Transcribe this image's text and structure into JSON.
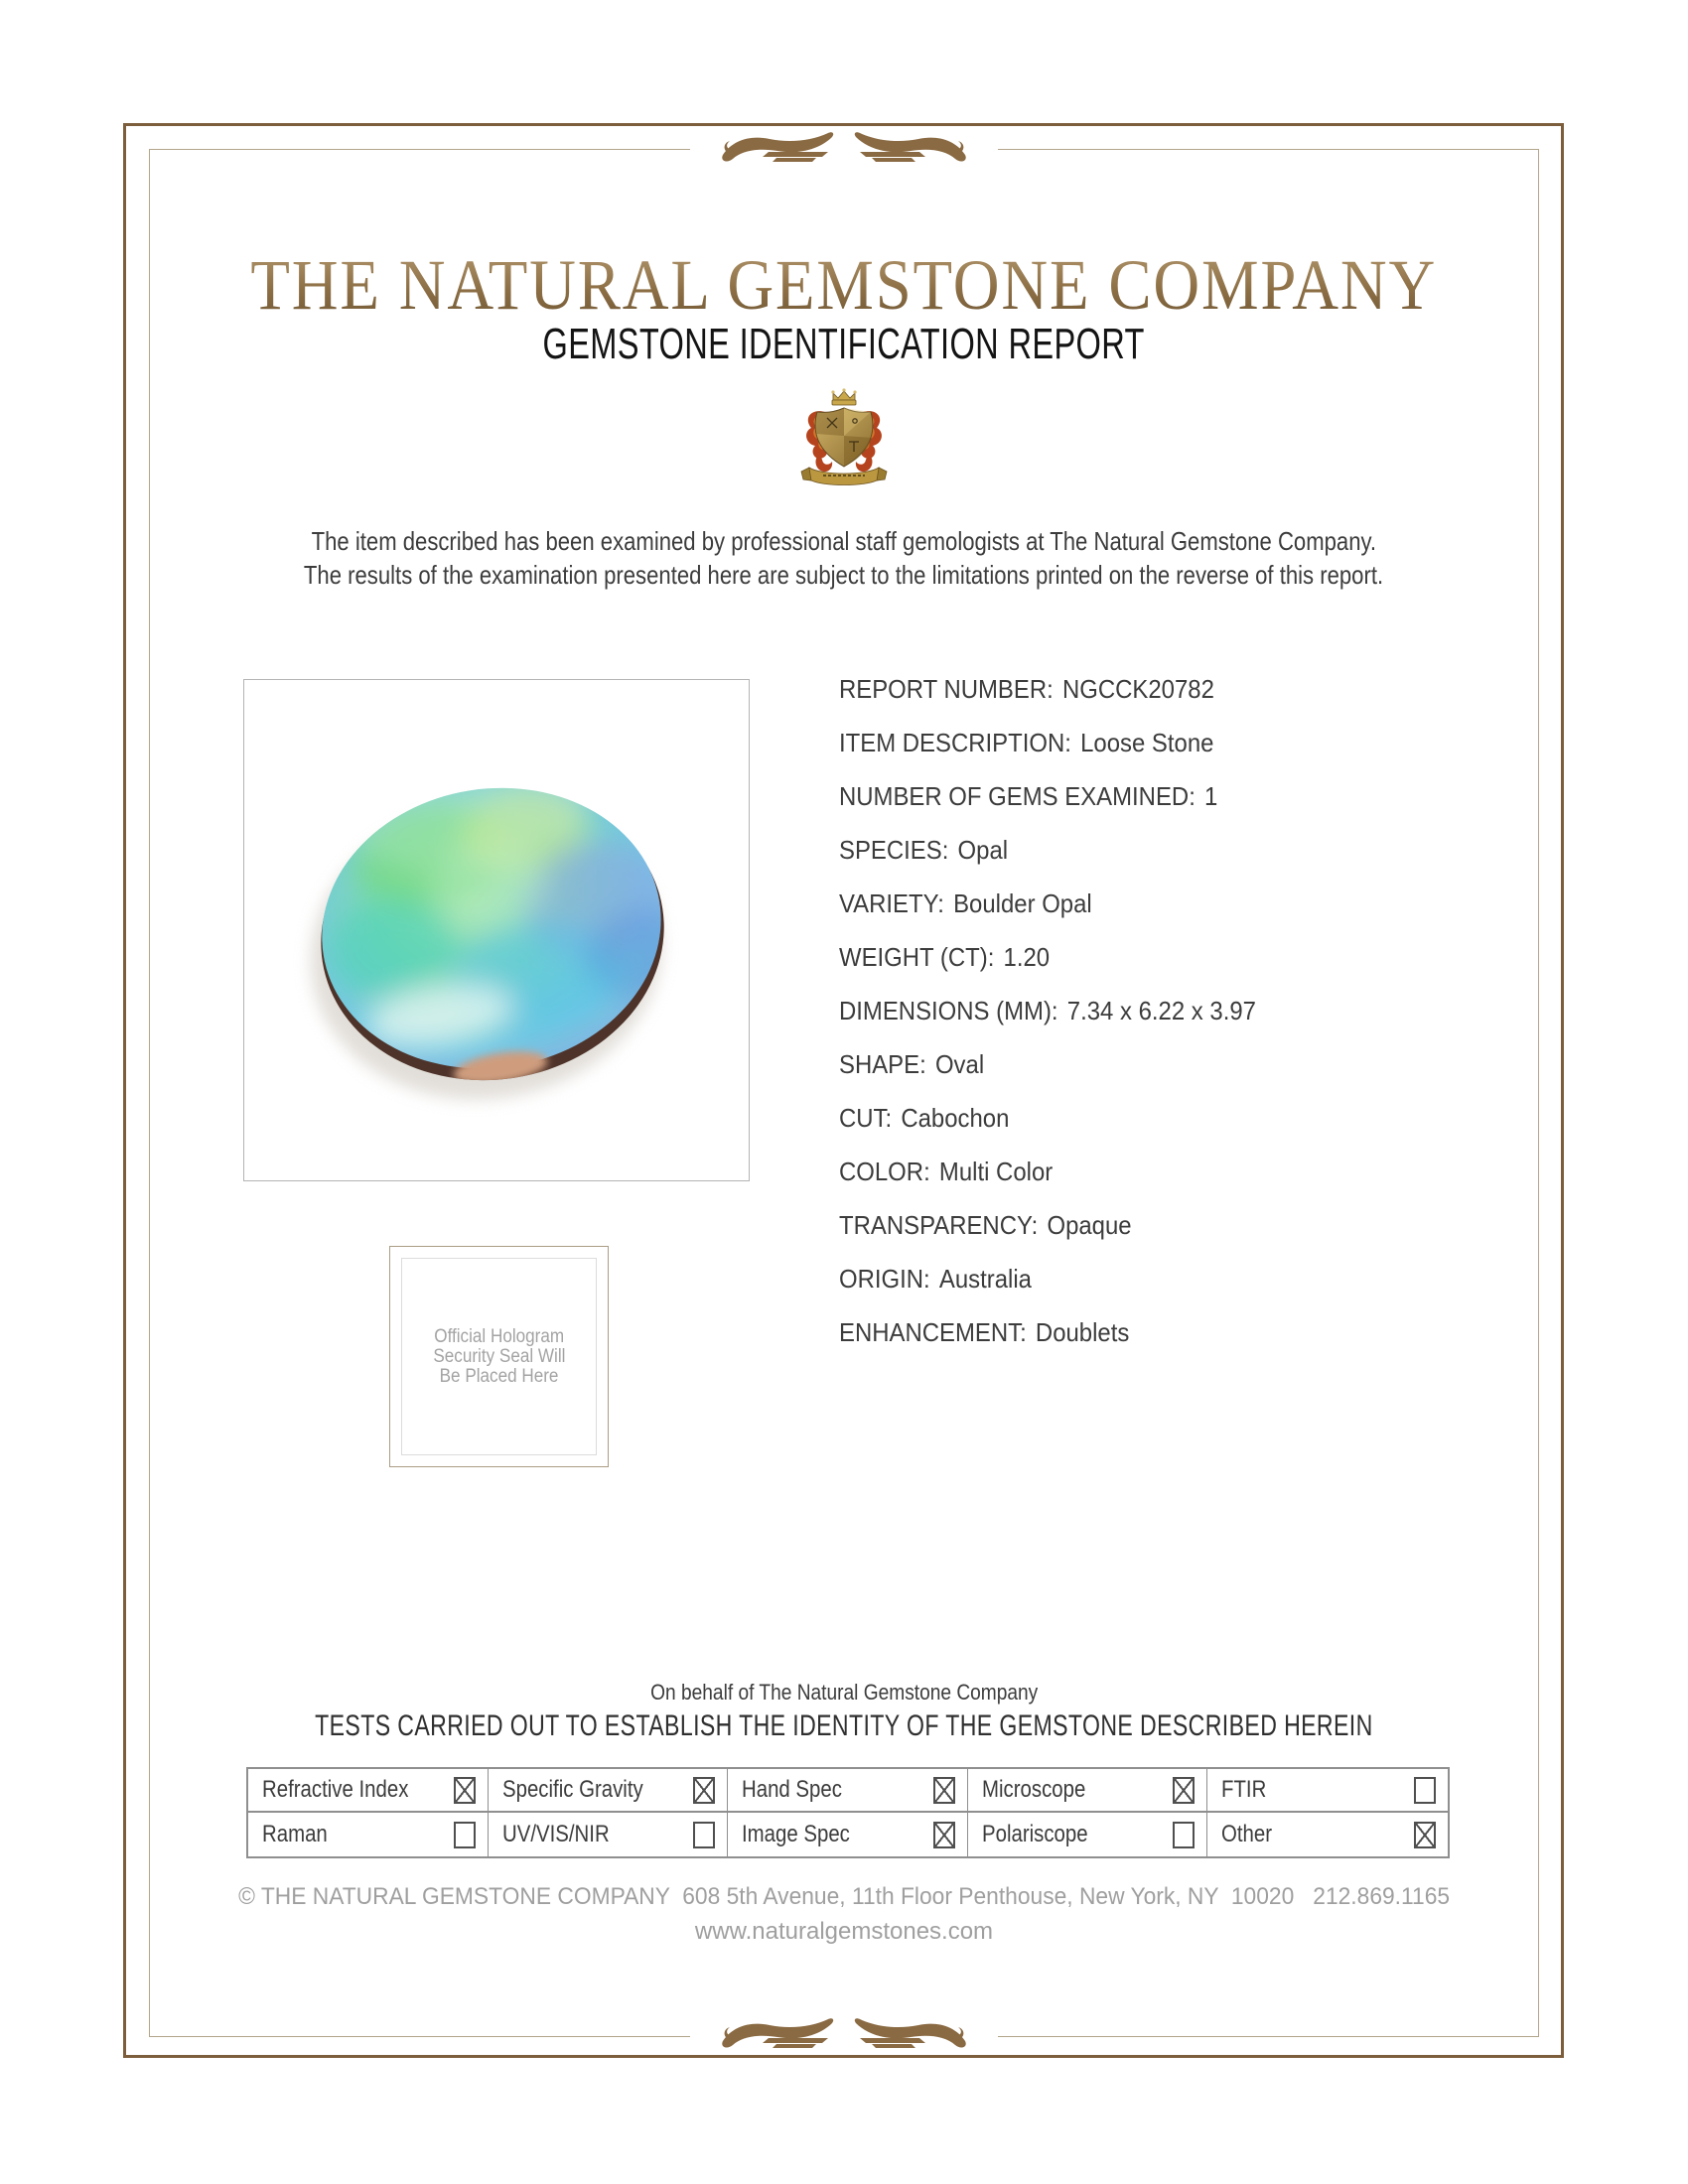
{
  "header": {
    "company_name": "THE NATURAL GEMSTONE COMPANY",
    "report_title": "GEMSTONE IDENTIFICATION REPORT"
  },
  "intro": {
    "line1": "The item described has been examined by professional staff gemologists at The Natural Gemstone Company.",
    "line2": "The results of the examination presented here are subject to the limitations printed on the reverse of this report."
  },
  "details": [
    {
      "label": "REPORT NUMBER:",
      "value": "NGCCK20782"
    },
    {
      "label": "ITEM DESCRIPTION:",
      "value": "Loose Stone"
    },
    {
      "label": "NUMBER OF GEMS EXAMINED:",
      "value": "1"
    },
    {
      "label": "SPECIES:",
      "value": "Opal"
    },
    {
      "label": "VARIETY:",
      "value": "Boulder Opal"
    },
    {
      "label": "WEIGHT (CT):",
      "value": "1.20"
    },
    {
      "label": "DIMENSIONS (MM):",
      "value": "7.34 x 6.22 x 3.97"
    },
    {
      "label": "SHAPE:",
      "value": "Oval"
    },
    {
      "label": "CUT:",
      "value": "Cabochon"
    },
    {
      "label": "COLOR:",
      "value": "Multi Color"
    },
    {
      "label": "TRANSPARENCY:",
      "value": "Opaque"
    },
    {
      "label": "ORIGIN:",
      "value": "Australia"
    },
    {
      "label": "ENHANCEMENT:",
      "value": "Doublets"
    }
  ],
  "hologram": {
    "line1": "Official Hologram",
    "line2": "Security Seal Will",
    "line3": "Be Placed Here"
  },
  "certification": {
    "on_behalf": "On behalf of The Natural Gemstone Company",
    "tests_heading": "TESTS CARRIED OUT TO ESTABLISH THE IDENTITY OF THE GEMSTONE DESCRIBED HEREIN"
  },
  "tests": {
    "rows": [
      [
        {
          "label": "Refractive Index",
          "checked": true
        },
        {
          "label": "Specific Gravity",
          "checked": true
        },
        {
          "label": "Hand Spec",
          "checked": true
        },
        {
          "label": "Microscope",
          "checked": true
        },
        {
          "label": "FTIR",
          "checked": false
        }
      ],
      [
        {
          "label": "Raman",
          "checked": false
        },
        {
          "label": "UV/VIS/NIR",
          "checked": false
        },
        {
          "label": "Image Spec",
          "checked": true
        },
        {
          "label": "Polariscope",
          "checked": false
        },
        {
          "label": "Other",
          "checked": true
        }
      ]
    ]
  },
  "footer": {
    "address": "© THE NATURAL GEMSTONE COMPANY  608 5th Avenue, 11th Floor Penthouse, New York, NY  10020   212.869.1165",
    "website": "www.naturalgemstones.com"
  },
  "icons": {
    "crest": "company-crest-icon",
    "flourish": "calligraphic-flourish-icon",
    "checkbox_checked": "crossed-box",
    "checkbox_unchecked": "empty-box"
  },
  "colors": {
    "gold_title": "#8d6f45",
    "outer_border": "#7d5e3c",
    "inner_border": "#b3a58c",
    "body_text": "#3c3c3c",
    "muted_text": "#9f9f9f",
    "table_border": "#8f8f8f",
    "mantling_red": "#b5431d",
    "crest_gold": "#c9a84c"
  }
}
